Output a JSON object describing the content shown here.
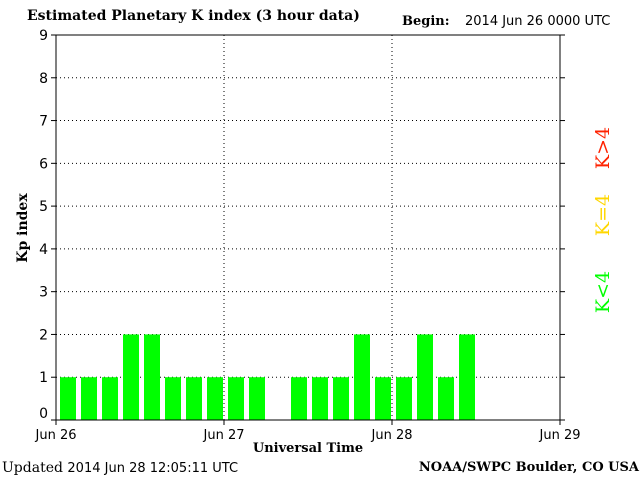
{
  "header": {
    "title": "Estimated Planetary K index (3 hour data)",
    "begin_label": "Begin:",
    "begin_value": "2014 Jun 26 0000 UTC"
  },
  "footer": {
    "updated_label": "Updated",
    "updated_value": "2014 Jun 28 12:05:11 UTC",
    "source": "NOAA/SWPC Boulder, CO USA"
  },
  "legend": {
    "items": [
      {
        "label": "K<4",
        "color": "#00ff00"
      },
      {
        "label": "K=4",
        "color": "#ffd700"
      },
      {
        "label": "K>4",
        "color": "#ff2200"
      }
    ]
  },
  "chart_data": {
    "type": "bar",
    "title": "Estimated Planetary K index (3 hour data)",
    "xlabel": "Universal Time",
    "ylabel": "Kp index",
    "ylim": [
      0,
      9
    ],
    "yticks": [
      "0",
      "1",
      "2",
      "3",
      "4",
      "5",
      "6",
      "7",
      "8",
      "9"
    ],
    "xticks": [
      "Jun 26",
      "Jun 27",
      "Jun 28",
      "Jun 29"
    ],
    "grid": true,
    "bar_color": "#00ff00",
    "interval_hours": 3,
    "values": [
      1,
      1,
      1,
      2,
      2,
      1,
      1,
      1,
      1,
      1,
      null,
      1,
      1,
      1,
      2,
      1,
      1,
      2,
      1,
      2
    ]
  }
}
